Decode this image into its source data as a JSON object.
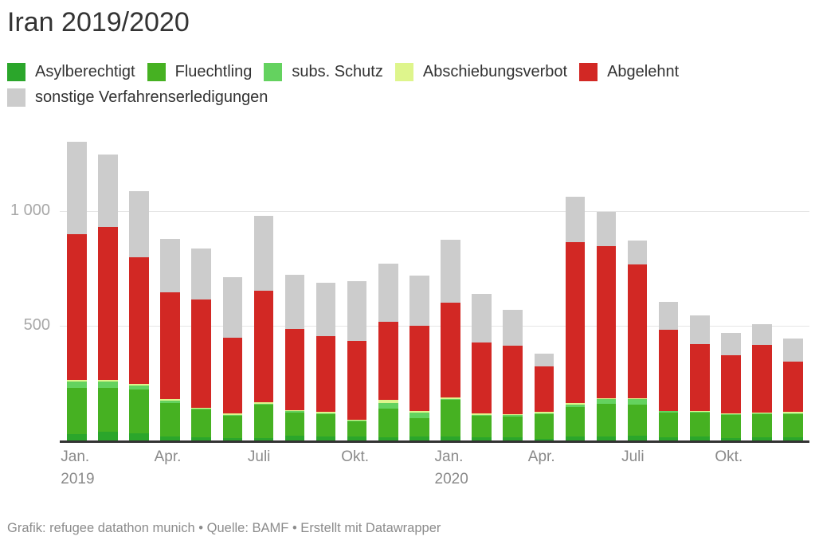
{
  "header": {
    "title": "Iran 2019/2020"
  },
  "legend": {
    "items": [
      {
        "label": "Asylberechtigt",
        "color": "#2ba62b",
        "line": 1
      },
      {
        "label": "Fluechtling",
        "color": "#46b122",
        "line": 1
      },
      {
        "label": "subs. Schutz",
        "color": "#64d25f",
        "line": 1
      },
      {
        "label": "Abschiebungsverbot",
        "color": "#def58c",
        "line": 1
      },
      {
        "label": "Abgelehnt",
        "color": "#d22824",
        "line": 1
      },
      {
        "label": "sonstige Verfahrenserledigungen",
        "color": "#cccccc",
        "line": 2
      }
    ]
  },
  "chart_data": {
    "type": "bar",
    "stacked": true,
    "title": "Iran 2019/2020",
    "xlabel": "",
    "ylabel": "",
    "ylim": [
      0,
      1350
    ],
    "grid": "horizontal",
    "legend_position": "top",
    "x": [
      "Jan. 2019",
      "Feb. 2019",
      "März 2019",
      "Apr. 2019",
      "Mai 2019",
      "Juni 2019",
      "Juli 2019",
      "Aug. 2019",
      "Sep. 2019",
      "Okt. 2019",
      "Nov. 2019",
      "Dez. 2019",
      "Jan. 2020",
      "Feb. 2020",
      "März 2020",
      "Apr. 2020",
      "Mai 2020",
      "Juni 2020",
      "Juli 2020",
      "Aug. 2020",
      "Sep. 2020",
      "Okt. 2020",
      "Nov. 2020",
      "Dez. 2020"
    ],
    "series": [
      {
        "name": "Asylberechtigt",
        "color": "#2ba62b",
        "values": [
          35,
          46,
          38,
          23,
          20,
          17,
          17,
          29,
          23,
          25,
          20,
          23,
          23,
          20,
          20,
          15,
          23,
          25,
          29,
          20,
          23,
          17,
          20,
          20
        ]
      },
      {
        "name": "Fluechtling",
        "color": "#46b122",
        "values": [
          200,
          190,
          190,
          145,
          120,
          97,
          145,
          100,
          98,
          64,
          125,
          80,
          160,
          95,
          92,
          105,
          130,
          140,
          133,
          109,
          105,
          99,
          100,
          102
        ]
      },
      {
        "name": "subs. Schutz",
        "color": "#64d25f",
        "values": [
          28,
          25,
          17,
          10,
          5,
          5,
          5,
          5,
          4,
          4,
          23,
          25,
          5,
          4,
          4,
          5,
          10,
          20,
          23,
          4,
          4,
          4,
          4,
          3
        ]
      },
      {
        "name": "Abschiebungsverbot",
        "color": "#def58c",
        "values": [
          8,
          8,
          8,
          7,
          5,
          5,
          5,
          5,
          5,
          4,
          14,
          5,
          6,
          4,
          4,
          5,
          5,
          6,
          4,
          3,
          3,
          4,
          4,
          6
        ]
      },
      {
        "name": "Abgelehnt",
        "color": "#d22824",
        "values": [
          630,
          665,
          547,
          465,
          468,
          330,
          483,
          350,
          330,
          341,
          340,
          370,
          410,
          310,
          297,
          200,
          700,
          660,
          582,
          351,
          290,
          252,
          293,
          219
        ]
      },
      {
        "name": "sonstige Verfahrenserledigungen",
        "color": "#cccccc",
        "values": [
          400,
          315,
          290,
          230,
          222,
          260,
          325,
          235,
          230,
          260,
          253,
          220,
          273,
          210,
          157,
          55,
          195,
          146,
          102,
          121,
          125,
          99,
          89,
          98
        ]
      }
    ],
    "y_ticks": [
      {
        "value": 500,
        "label": "500"
      },
      {
        "value": 1000,
        "label": "1 000"
      }
    ],
    "x_ticks": [
      {
        "index": 0,
        "lines": [
          "Jan.",
          "2019"
        ]
      },
      {
        "index": 3,
        "lines": [
          "Apr."
        ]
      },
      {
        "index": 6,
        "lines": [
          "Juli"
        ]
      },
      {
        "index": 9,
        "lines": [
          "Okt."
        ]
      },
      {
        "index": 12,
        "lines": [
          "Jan.",
          "2020"
        ]
      },
      {
        "index": 15,
        "lines": [
          "Apr."
        ]
      },
      {
        "index": 18,
        "lines": [
          "Juli"
        ]
      },
      {
        "index": 21,
        "lines": [
          "Okt."
        ]
      }
    ]
  },
  "footer": {
    "text": "Grafik: refugee datathon munich • Quelle: BAMF • Erstellt mit Datawrapper"
  }
}
